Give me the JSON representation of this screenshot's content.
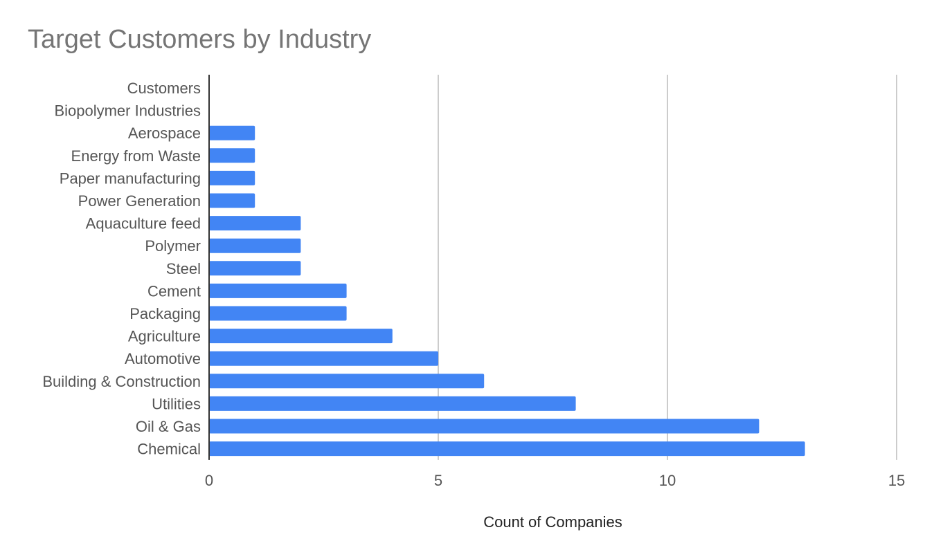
{
  "chart_data": {
    "type": "bar",
    "orientation": "horizontal",
    "title": "Target Customers by Industry",
    "xlabel": "Count of Companies",
    "ylabel": "",
    "categories": [
      "Customers",
      "Biopolymer Industries",
      "Aerospace",
      "Energy from Waste",
      "Paper manufacturing",
      "Power Generation",
      "Aquaculture feed",
      "Polymer",
      "Steel",
      "Cement",
      "Packaging",
      "Agriculture",
      "Automotive",
      "Building & Construction",
      "Utilities",
      "Oil & Gas",
      "Chemical"
    ],
    "values": [
      0,
      0,
      1,
      1,
      1,
      1,
      2,
      2,
      2,
      3,
      3,
      4,
      5,
      6,
      8,
      12,
      13
    ],
    "xlim": [
      0,
      15
    ],
    "xticks": [
      "0",
      "5",
      "10",
      "15"
    ],
    "grid": true,
    "legend": "none",
    "bar_color": "#4285f4"
  }
}
